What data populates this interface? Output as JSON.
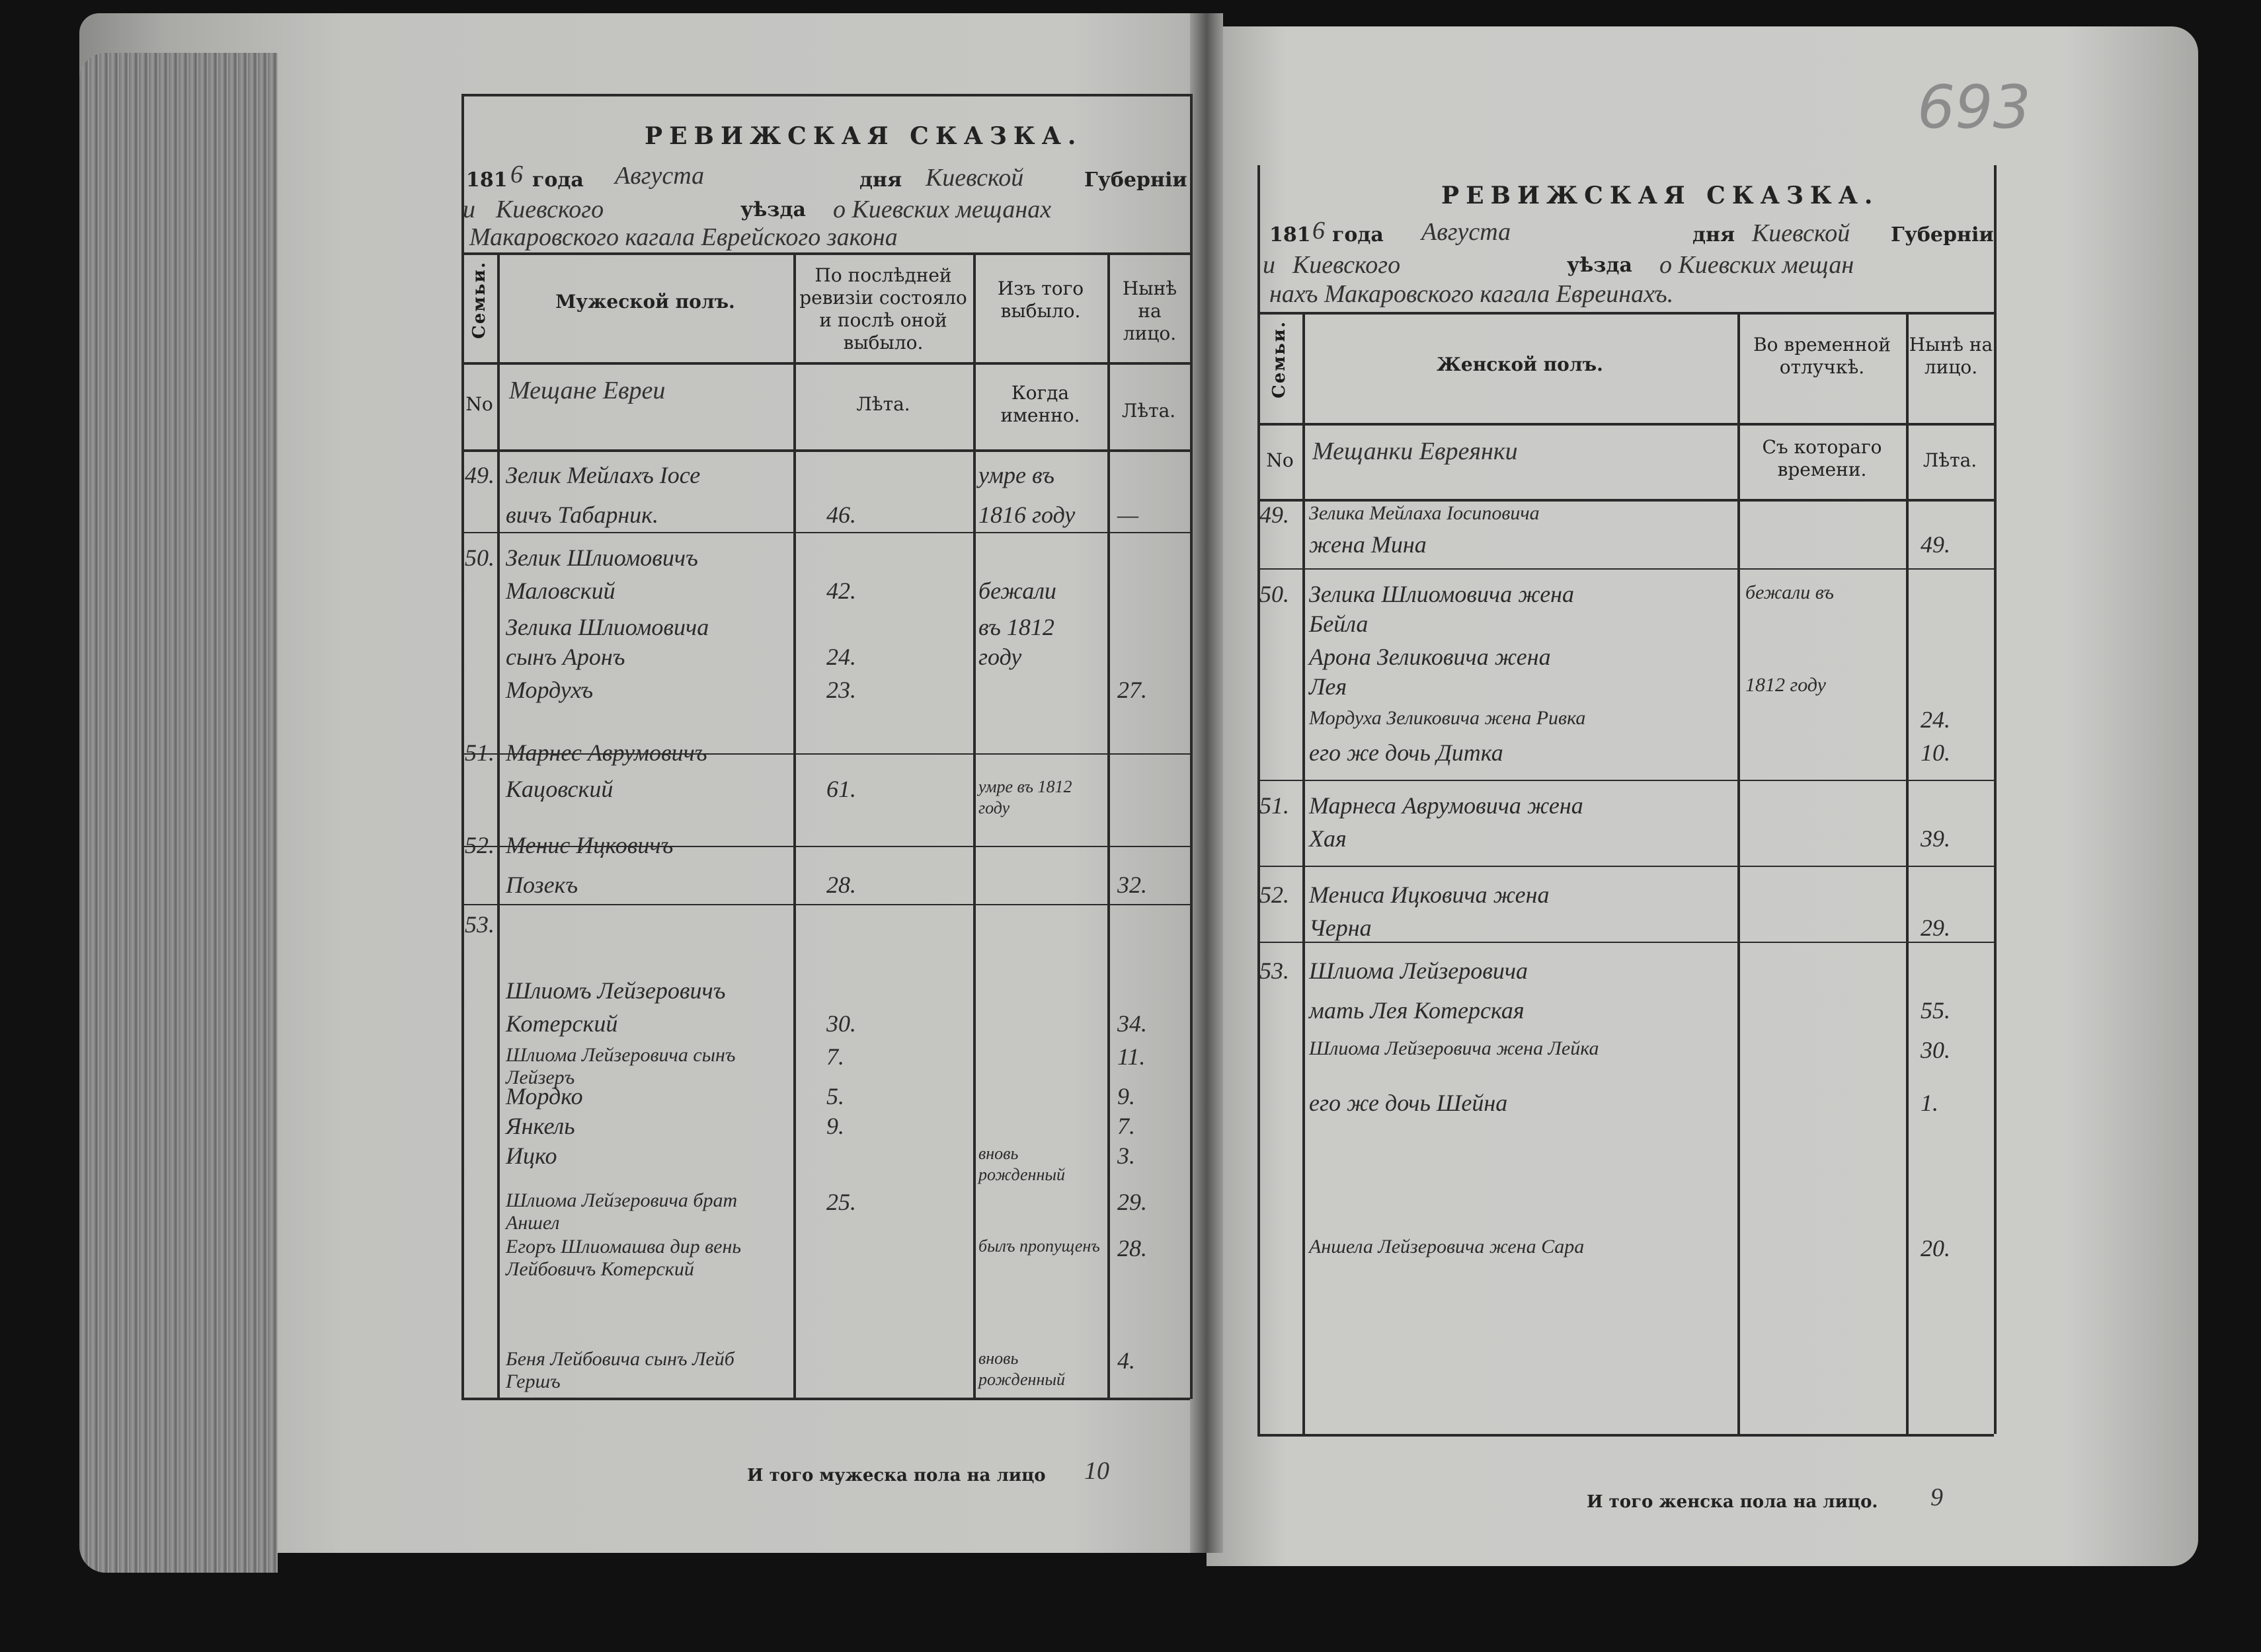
{
  "page_number": "693",
  "left_page": {
    "title": "РЕВИЖСКАЯ СКАЗКА.",
    "year_prefix": "181",
    "year_suffix": "6",
    "year_label": "года",
    "month": "Августа",
    "day_label": "дня",
    "province": "Киевской",
    "province_label": "Губерніи",
    "district_prefix": "и",
    "district": "Киевского",
    "district_label": "уѣзда",
    "community_line1": "о Киевских мещанах",
    "community_line2": "Макаровского кагала Еврейского закона",
    "headers": {
      "family": "Семьи.",
      "no": "No",
      "sex": "Мужеской полъ.",
      "category": "Мещане Евреи",
      "last_revision": "По послѣдней ревизіи состояло и послѣ оной выбыло.",
      "age": "Лѣта.",
      "left": "Изъ того выбыло.",
      "when": "Когда именно.",
      "present": "Нынѣ на лицо.",
      "present_age": "Лѣта."
    },
    "rows": [
      {
        "fam": "49.",
        "name": "Зелик Мейлахъ Iосе",
        "age": "",
        "when": "умре въ",
        "now": ""
      },
      {
        "fam": "",
        "name": "вичъ Табарник.",
        "age": "46.",
        "when": "1816 году",
        "now": "—"
      },
      {
        "fam": "50.",
        "name": "Зелик Шлиомовичъ",
        "age": "",
        "when": "",
        "now": ""
      },
      {
        "fam": "",
        "name": "Маловский",
        "age": "42.",
        "when": "бежали",
        "now": ""
      },
      {
        "fam": "",
        "name": "Зелика Шлиомовича",
        "age": "",
        "when": "въ 1812",
        "now": ""
      },
      {
        "fam": "",
        "name": "сынъ Аронъ",
        "age": "24.",
        "when": "году",
        "now": ""
      },
      {
        "fam": "",
        "name": "Мордухъ",
        "age": "23.",
        "when": "",
        "now": "27."
      },
      {
        "fam": "51.",
        "name": "Марнес Аврумовичъ",
        "age": "",
        "when": "",
        "now": ""
      },
      {
        "fam": "",
        "name": "Кацовский",
        "age": "61.",
        "when": "умре въ 1812 году",
        "now": ""
      },
      {
        "fam": "52.",
        "name": "Менис Ицковичъ",
        "age": "",
        "when": "",
        "now": ""
      },
      {
        "fam": "",
        "name": "Позекъ",
        "age": "28.",
        "when": "",
        "now": "32."
      },
      {
        "fam": "53.",
        "name": "",
        "age": "",
        "when": "",
        "now": ""
      },
      {
        "fam": "",
        "name": "Шлиомъ Лейзеровичъ",
        "age": "",
        "when": "",
        "now": ""
      },
      {
        "fam": "",
        "name": "Котерский",
        "age": "30.",
        "when": "",
        "now": "34."
      },
      {
        "fam": "",
        "name": "Шлиома Лейзеровича сынъ Лейзеръ",
        "age": "7.",
        "when": "",
        "now": "11."
      },
      {
        "fam": "",
        "name": "Мордко",
        "age": "5.",
        "when": "",
        "now": "9."
      },
      {
        "fam": "",
        "name": "Янкель",
        "age": "9.",
        "when": "",
        "now": "7."
      },
      {
        "fam": "",
        "name": "Ицко",
        "age": "",
        "when": "вновь рожденный",
        "now": "3."
      },
      {
        "fam": "",
        "name": "Шлиома Лейзеровича брат Аншел",
        "age": "25.",
        "when": "",
        "now": "29."
      },
      {
        "fam": "",
        "name": "Егоръ Шлиомашва дир вень Лейбовичъ Котерский",
        "age": "",
        "when": "былъ пропущенъ",
        "now": "28."
      },
      {
        "fam": "",
        "name": "Беня Лейбовича сынъ Лейб Гершъ",
        "age": "",
        "when": "вновь рожденный",
        "now": "4."
      }
    ],
    "total_label": "И того мужеска пола на лицо",
    "total": "10"
  },
  "right_page": {
    "title": "РЕВИЖСКАЯ СКАЗКА.",
    "year_prefix": "181",
    "year_suffix": "6",
    "year_label": "года",
    "month": "Августа",
    "day_label": "дня",
    "province": "Киевской",
    "province_label": "Губерніи",
    "district_prefix": "и",
    "district": "Киевского",
    "district_label": "уѣзда",
    "community_line1": "о Киевских мещан",
    "community_line2": "нахъ Макаровского кагала Евреинахъ.",
    "headers": {
      "family": "Семьи.",
      "no": "No",
      "sex": "Женской полъ.",
      "category": "Мещанки Евреянки",
      "absent": "Во временной отлучкѣ.",
      "since": "Съ котораго времени.",
      "present": "Нынѣ на лицо.",
      "present_age": "Лѣта."
    },
    "rows": [
      {
        "fam": "49.",
        "name": "Зелика Мейлаха Iосиповича",
        "absent": "",
        "now": ""
      },
      {
        "fam": "",
        "name": "жена Мина",
        "absent": "",
        "now": "49."
      },
      {
        "fam": "50.",
        "name": "Зелика Шлиомовича жена",
        "absent": "бежали въ",
        "now": ""
      },
      {
        "fam": "",
        "name": "Бейла",
        "absent": "",
        "now": ""
      },
      {
        "fam": "",
        "name": "Арона Зеликовича жена",
        "absent": "",
        "now": ""
      },
      {
        "fam": "",
        "name": "Лея",
        "absent": "1812 году",
        "now": ""
      },
      {
        "fam": "",
        "name": "Мордуха Зеликовича жена Ривка",
        "absent": "",
        "now": "24."
      },
      {
        "fam": "",
        "name": "его же дочь Дитка",
        "absent": "",
        "now": "10."
      },
      {
        "fam": "51.",
        "name": "Марнеса Аврумовича жена",
        "absent": "",
        "now": ""
      },
      {
        "fam": "",
        "name": "Хая",
        "absent": "",
        "now": "39."
      },
      {
        "fam": "52.",
        "name": "Мениса Ицковича жена",
        "absent": "",
        "now": ""
      },
      {
        "fam": "",
        "name": "Черна",
        "absent": "",
        "now": "29."
      },
      {
        "fam": "53.",
        "name": "Шлиома Лейзеровича",
        "absent": "",
        "now": ""
      },
      {
        "fam": "",
        "name": "мать Лея Котерская",
        "absent": "",
        "now": "55."
      },
      {
        "fam": "",
        "name": "Шлиома Лейзеровича жена Лейка",
        "absent": "",
        "now": "30."
      },
      {
        "fam": "",
        "name": "его же дочь Шейна",
        "absent": "",
        "now": "1."
      },
      {
        "fam": "",
        "name": "",
        "absent": "",
        "now": ""
      },
      {
        "fam": "",
        "name": "",
        "absent": "",
        "now": ""
      },
      {
        "fam": "",
        "name": "Аншела Лейзеровича жена Сара",
        "absent": "",
        "now": "20."
      }
    ],
    "total_label": "И того женска пола на лицо.",
    "total": "9"
  }
}
